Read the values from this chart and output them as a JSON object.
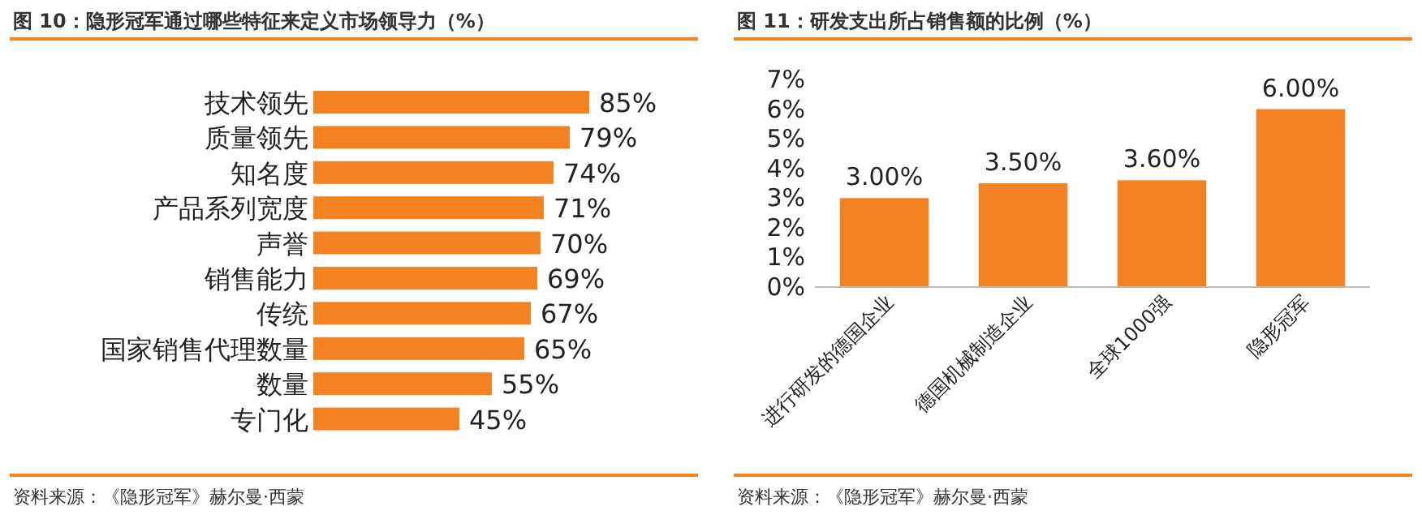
{
  "chart_data": [
    {
      "type": "bar",
      "orientation": "horizontal",
      "title": "图 10：隐形冠军通过哪些特征来定义市场领导力（%）",
      "categories": [
        "技术领先",
        "质量领先",
        "知名度",
        "产品系列宽度",
        "声誉",
        "销售能力",
        "传统",
        "国家销售代理数量",
        "数量",
        "专门化"
      ],
      "values": [
        85,
        79,
        74,
        71,
        70,
        69,
        67,
        65,
        55,
        45
      ],
      "value_labels": [
        "85%",
        "79%",
        "74%",
        "71%",
        "70%",
        "69%",
        "67%",
        "65%",
        "55%",
        "45%"
      ],
      "color": "#f58220",
      "annotations": [
        "资料来源：《隐形冠军》赫尔曼·西蒙"
      ]
    },
    {
      "type": "bar",
      "title": "图 11：研发支出所占销售额的比例（%）",
      "categories": [
        "进行研发的德国企业",
        "德国机械制造企业",
        "全球1000强",
        "隐形冠军"
      ],
      "values": [
        3.0,
        3.5,
        3.6,
        6.0
      ],
      "value_labels": [
        "3.00%",
        "3.50%",
        "3.60%",
        "6.00%"
      ],
      "ylim": [
        0,
        7
      ],
      "yticks": [
        {
          "value": 0,
          "label": "0%"
        },
        {
          "value": 1,
          "label": "1%"
        },
        {
          "value": 2,
          "label": "2%"
        },
        {
          "value": 3,
          "label": "3%"
        },
        {
          "value": 4,
          "label": "4%"
        },
        {
          "value": 5,
          "label": "5%"
        },
        {
          "value": 6,
          "label": "6%"
        },
        {
          "value": 7,
          "label": "7%"
        }
      ],
      "color": "#f58220",
      "annotations": [
        "资料来源：《隐形冠军》赫尔曼·西蒙"
      ]
    }
  ]
}
